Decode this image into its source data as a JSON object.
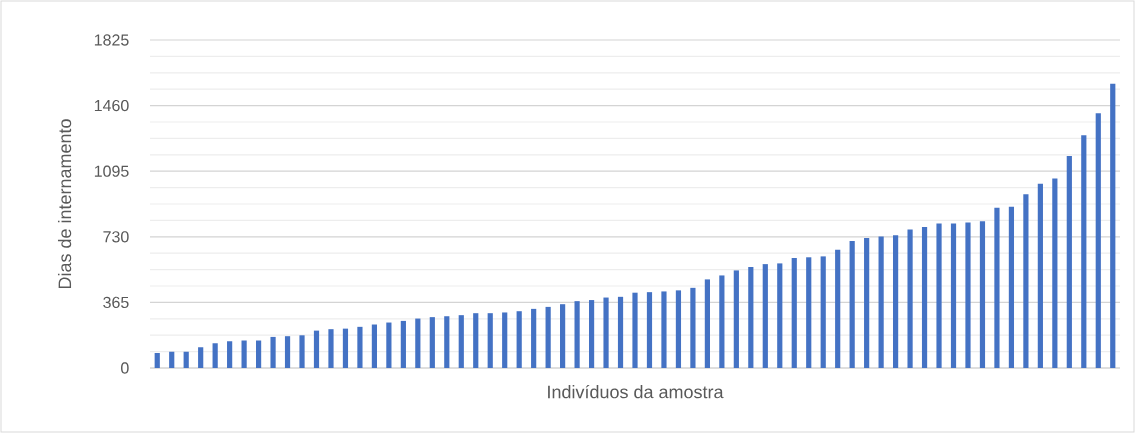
{
  "chart_data": {
    "type": "bar",
    "xlabel": "Indivíduos da amostra",
    "ylabel": "Dias de internamento",
    "categories": [
      null,
      null,
      null,
      null,
      null,
      null,
      null,
      null,
      null,
      null,
      null,
      null,
      null,
      null,
      null,
      null,
      null,
      null,
      null,
      null,
      null,
      null,
      null,
      null,
      null,
      null,
      null,
      null,
      null,
      null,
      null,
      null,
      null,
      null,
      null,
      null,
      null,
      null,
      null,
      null,
      null,
      null,
      null,
      null,
      null,
      null,
      null,
      null,
      null,
      null,
      null,
      null,
      null,
      null,
      null,
      null,
      null,
      null,
      null,
      null,
      null,
      null,
      null,
      null,
      null,
      null,
      null
    ],
    "values": [
      84,
      91,
      91,
      115,
      138,
      149,
      153,
      153,
      173,
      177,
      182,
      208,
      216,
      219,
      229,
      242,
      253,
      262,
      275,
      283,
      288,
      294,
      305,
      305,
      309,
      316,
      329,
      340,
      355,
      372,
      378,
      392,
      396,
      419,
      422,
      426,
      432,
      446,
      493,
      515,
      543,
      562,
      578,
      582,
      612,
      616,
      621,
      658,
      707,
      724,
      731,
      738,
      770,
      785,
      804,
      804,
      809,
      817,
      891,
      897,
      967,
      1025,
      1055,
      1179,
      1295,
      1417,
      1581
    ],
    "color": "#4472c4",
    "ylim": [
      0,
      1825
    ],
    "yticks": [
      0,
      365,
      730,
      1095,
      1460,
      1825
    ],
    "grid": "y"
  }
}
